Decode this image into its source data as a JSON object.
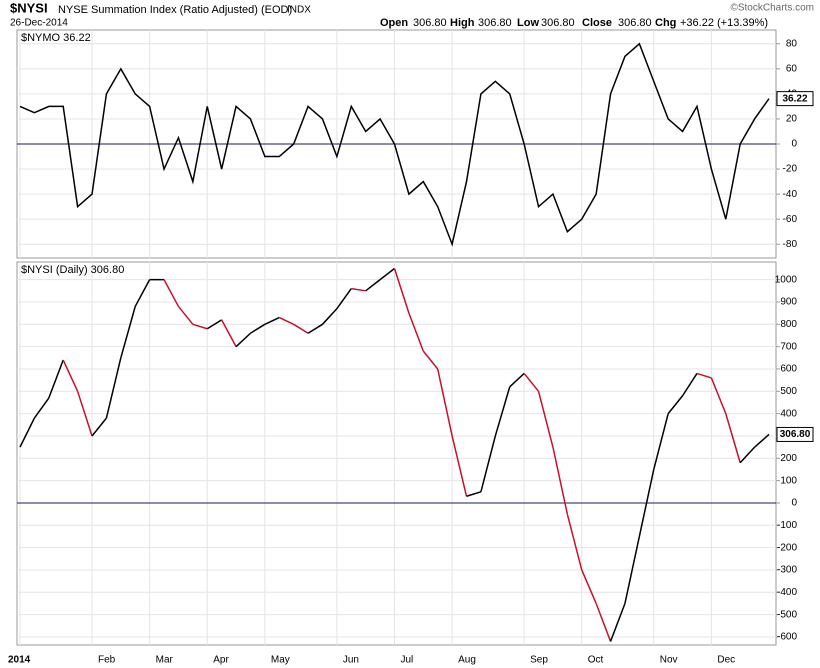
{
  "header": {
    "symbol": "$NYSI",
    "description": "NYSE Summation Index (Ratio Adjusted) (EOD)",
    "exchange": "INDX",
    "date": "26-Dec-2014",
    "credit": "©StockCharts.com",
    "open_label": "Open",
    "open": "306.80",
    "high_label": "High",
    "high": "306.80",
    "low_label": "Low",
    "low": "306.80",
    "close_label": "Close",
    "close": "306.80",
    "chg_label": "Chg",
    "chg": "+36.22 (+13.39%)"
  },
  "chart_data": [
    {
      "type": "line",
      "label": "$NYMO 36.22",
      "last_label": "36.22",
      "categories": [
        "2014",
        null,
        null,
        null,
        null,
        "Feb",
        null,
        null,
        null,
        "Mar",
        null,
        null,
        null,
        "Apr",
        null,
        null,
        null,
        "May",
        null,
        null,
        null,
        null,
        "Jun",
        null,
        null,
        null,
        "Jul",
        null,
        null,
        null,
        "Aug",
        null,
        null,
        null,
        null,
        "Sep",
        null,
        null,
        null,
        "Oct",
        null,
        null,
        null,
        null,
        "Nov",
        null,
        null,
        null,
        "Dec",
        null,
        null,
        null,
        null
      ],
      "series": [
        {
          "name": "$NYMO",
          "color": "#000000",
          "values": [
            30,
            25,
            30,
            30,
            -50,
            -40,
            40,
            60,
            40,
            30,
            -20,
            5,
            -30,
            30,
            -20,
            30,
            20,
            -10,
            -10,
            0,
            30,
            20,
            -10,
            30,
            10,
            20,
            0,
            -40,
            -30,
            -50,
            -80,
            -30,
            40,
            50,
            40,
            0,
            -50,
            -40,
            -70,
            -60,
            -40,
            40,
            70,
            80,
            50,
            20,
            10,
            30,
            -20,
            -60,
            0,
            20,
            36.22
          ]
        }
      ],
      "ylim": [
        -91,
        91
      ],
      "yticks": [
        -80,
        -60,
        -40,
        -20,
        0,
        20,
        40,
        60,
        80
      ],
      "zero_line": 0,
      "grid": true
    },
    {
      "type": "line",
      "label": "$NYSI (Daily) 306.80",
      "last_label": "306.80",
      "rising_color": "#000000",
      "falling_color": "#c8102e",
      "categories": [
        "2014",
        null,
        null,
        null,
        null,
        "Feb",
        null,
        null,
        null,
        "Mar",
        null,
        null,
        null,
        "Apr",
        null,
        null,
        null,
        "May",
        null,
        null,
        null,
        null,
        "Jun",
        null,
        null,
        null,
        "Jul",
        null,
        null,
        null,
        "Aug",
        null,
        null,
        null,
        null,
        "Sep",
        null,
        null,
        null,
        "Oct",
        null,
        null,
        null,
        null,
        "Nov",
        null,
        null,
        null,
        "Dec",
        null,
        null,
        null,
        null
      ],
      "series": [
        {
          "name": "$NYSI (Daily)",
          "color": "#000000",
          "values": [
            250,
            380,
            470,
            640,
            500,
            300,
            380,
            650,
            880,
            1000,
            1000,
            880,
            800,
            780,
            820,
            700,
            760,
            800,
            830,
            800,
            760,
            800,
            870,
            960,
            950,
            1000,
            1050,
            850,
            680,
            600,
            300,
            30,
            50,
            300,
            520,
            580,
            500,
            250,
            -50,
            -300,
            -450,
            -620,
            -450,
            -150,
            150,
            400,
            480,
            580,
            560,
            400,
            180,
            250,
            306.8
          ]
        }
      ],
      "ylim": [
        -636,
        1079
      ],
      "yticks": [
        -600,
        -500,
        -400,
        -300,
        -200,
        -100,
        0,
        100,
        200,
        300,
        400,
        500,
        600,
        700,
        800,
        900,
        1000
      ],
      "zero_line": 0,
      "grid": true
    }
  ]
}
